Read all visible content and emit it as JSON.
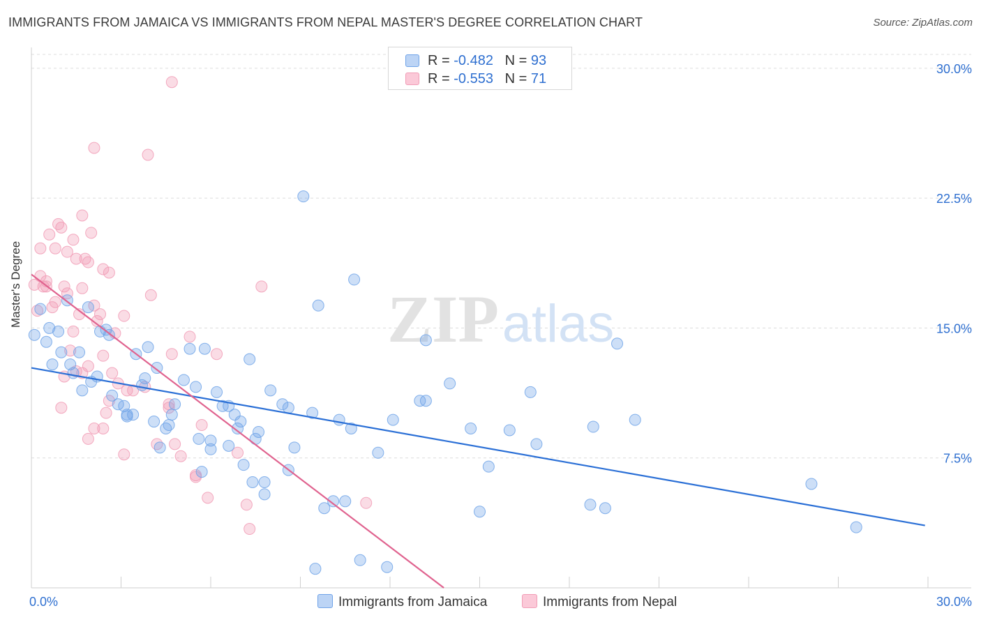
{
  "title": "IMMIGRANTS FROM JAMAICA VS IMMIGRANTS FROM NEPAL MASTER'S DEGREE CORRELATION CHART",
  "source": "Source: ZipAtlas.com",
  "watermark": {
    "zip": "ZIP",
    "atlas": "atlas"
  },
  "colors": {
    "jamaica": "#6fa3e8",
    "nepal": "#f19bb5",
    "jamaica_line": "#2a6fd6",
    "nepal_line": "#e0638f",
    "tick_text": "#2e6fd0"
  },
  "legend": {
    "items": [
      {
        "r_label": "R = ",
        "r_value": "-0.482",
        "n_label": "N = ",
        "n_value": "93"
      },
      {
        "r_label": "R = ",
        "r_value": "-0.553",
        "n_label": "N = ",
        "n_value": "71"
      }
    ]
  },
  "chart_data": {
    "type": "scatter",
    "title": "IMMIGRANTS FROM JAMAICA VS IMMIGRANTS FROM NEPAL MASTER'S DEGREE CORRELATION CHART",
    "xlabel": "",
    "ylabel": "Master's Degree",
    "xlim": [
      0,
      30
    ],
    "ylim": [
      0,
      30.8
    ],
    "x_tick_labels": [
      "0.0%",
      "30.0%"
    ],
    "y_ticks": [
      7.5,
      15.0,
      22.5,
      30.0
    ],
    "y_tick_labels": [
      "7.5%",
      "15.0%",
      "22.5%",
      "30.0%"
    ],
    "grid": true,
    "legend_position": "bottom",
    "series": [
      {
        "name": "Immigrants from Jamaica",
        "r": -0.482,
        "n": 93,
        "trend": {
          "x0": 0.0,
          "y0": 12.7,
          "x1": 29.9,
          "y1": 3.6
        },
        "points": [
          [
            0.1,
            14.6
          ],
          [
            0.3,
            16.1
          ],
          [
            0.5,
            14.2
          ],
          [
            0.6,
            15.0
          ],
          [
            0.7,
            12.9
          ],
          [
            0.9,
            14.8
          ],
          [
            1.0,
            13.6
          ],
          [
            1.2,
            16.6
          ],
          [
            1.3,
            12.9
          ],
          [
            1.4,
            12.4
          ],
          [
            1.6,
            13.6
          ],
          [
            1.7,
            11.4
          ],
          [
            1.9,
            16.2
          ],
          [
            2.0,
            11.9
          ],
          [
            2.2,
            12.2
          ],
          [
            2.3,
            14.8
          ],
          [
            2.5,
            14.9
          ],
          [
            2.6,
            14.6
          ],
          [
            2.7,
            11.1
          ],
          [
            2.9,
            10.6
          ],
          [
            3.1,
            10.5
          ],
          [
            3.2,
            10.0
          ],
          [
            3.4,
            10.0
          ],
          [
            3.5,
            13.5
          ],
          [
            3.7,
            11.7
          ],
          [
            3.8,
            12.1
          ],
          [
            3.9,
            13.9
          ],
          [
            4.1,
            9.6
          ],
          [
            4.2,
            12.7
          ],
          [
            4.3,
            8.1
          ],
          [
            4.5,
            9.2
          ],
          [
            4.6,
            9.4
          ],
          [
            4.7,
            10.0
          ],
          [
            4.8,
            10.6
          ],
          [
            5.1,
            12.0
          ],
          [
            5.3,
            13.8
          ],
          [
            5.5,
            11.6
          ],
          [
            5.7,
            6.7
          ],
          [
            5.8,
            13.8
          ],
          [
            6.0,
            8.5
          ],
          [
            6.0,
            8.0
          ],
          [
            6.2,
            11.3
          ],
          [
            6.4,
            10.5
          ],
          [
            6.6,
            8.2
          ],
          [
            6.8,
            10.0
          ],
          [
            6.9,
            9.2
          ],
          [
            7.0,
            9.6
          ],
          [
            7.1,
            7.1
          ],
          [
            7.3,
            13.2
          ],
          [
            7.4,
            6.1
          ],
          [
            7.5,
            8.6
          ],
          [
            7.6,
            9.0
          ],
          [
            7.8,
            5.4
          ],
          [
            7.8,
            6.1
          ],
          [
            8.0,
            11.4
          ],
          [
            8.4,
            10.6
          ],
          [
            8.6,
            10.4
          ],
          [
            8.8,
            8.1
          ],
          [
            8.6,
            6.8
          ],
          [
            9.4,
            10.1
          ],
          [
            9.6,
            16.3
          ],
          [
            9.5,
            1.1
          ],
          [
            9.8,
            4.6
          ],
          [
            10.1,
            5.0
          ],
          [
            10.3,
            9.7
          ],
          [
            10.5,
            5.0
          ],
          [
            10.7,
            9.2
          ],
          [
            10.8,
            17.8
          ],
          [
            11.0,
            1.6
          ],
          [
            11.6,
            7.8
          ],
          [
            11.9,
            1.2
          ],
          [
            12.1,
            9.7
          ],
          [
            13.0,
            10.8
          ],
          [
            13.2,
            10.8
          ],
          [
            13.2,
            14.3
          ],
          [
            14.0,
            11.8
          ],
          [
            14.7,
            9.2
          ],
          [
            15.0,
            4.4
          ],
          [
            15.3,
            7.0
          ],
          [
            16.0,
            9.1
          ],
          [
            16.7,
            11.3
          ],
          [
            16.9,
            8.3
          ],
          [
            18.7,
            4.8
          ],
          [
            18.8,
            9.3
          ],
          [
            19.2,
            4.6
          ],
          [
            19.6,
            14.1
          ],
          [
            20.2,
            9.7
          ],
          [
            9.1,
            22.6
          ],
          [
            26.1,
            6.0
          ],
          [
            27.6,
            3.5
          ],
          [
            3.2,
            9.9
          ],
          [
            5.6,
            8.6
          ],
          [
            6.6,
            10.5
          ]
        ]
      },
      {
        "name": "Immigrants from Nepal",
        "r": -0.553,
        "n": 71,
        "trend": {
          "x0": 0.0,
          "y0": 18.1,
          "x1": 13.8,
          "y1": 0.0
        },
        "points": [
          [
            0.1,
            17.5
          ],
          [
            0.2,
            16.0
          ],
          [
            0.3,
            18.0
          ],
          [
            0.3,
            19.6
          ],
          [
            0.4,
            17.4
          ],
          [
            0.5,
            17.7
          ],
          [
            0.5,
            17.4
          ],
          [
            0.6,
            20.4
          ],
          [
            0.7,
            16.2
          ],
          [
            0.8,
            16.5
          ],
          [
            0.8,
            19.6
          ],
          [
            0.9,
            21.0
          ],
          [
            1.0,
            20.8
          ],
          [
            1.0,
            10.4
          ],
          [
            1.1,
            17.4
          ],
          [
            1.1,
            12.2
          ],
          [
            1.2,
            17.0
          ],
          [
            1.2,
            19.4
          ],
          [
            1.3,
            13.7
          ],
          [
            1.4,
            20.1
          ],
          [
            1.4,
            14.8
          ],
          [
            1.5,
            19.0
          ],
          [
            1.5,
            12.5
          ],
          [
            1.6,
            15.8
          ],
          [
            1.7,
            17.3
          ],
          [
            1.7,
            12.4
          ],
          [
            1.7,
            21.5
          ],
          [
            1.8,
            19.0
          ],
          [
            1.9,
            18.8
          ],
          [
            1.9,
            12.8
          ],
          [
            1.9,
            8.6
          ],
          [
            2.0,
            20.5
          ],
          [
            2.1,
            16.3
          ],
          [
            2.1,
            9.2
          ],
          [
            2.2,
            15.4
          ],
          [
            2.3,
            15.8
          ],
          [
            2.4,
            9.2
          ],
          [
            2.4,
            18.4
          ],
          [
            2.4,
            13.4
          ],
          [
            2.5,
            10.1
          ],
          [
            2.6,
            18.2
          ],
          [
            2.6,
            10.8
          ],
          [
            2.7,
            12.4
          ],
          [
            2.8,
            14.7
          ],
          [
            2.9,
            11.8
          ],
          [
            3.1,
            7.7
          ],
          [
            3.1,
            15.7
          ],
          [
            3.2,
            11.4
          ],
          [
            3.4,
            11.4
          ],
          [
            3.8,
            11.6
          ],
          [
            3.9,
            25.0
          ],
          [
            4.0,
            16.9
          ],
          [
            4.2,
            8.3
          ],
          [
            4.6,
            10.6
          ],
          [
            4.6,
            10.4
          ],
          [
            4.7,
            13.5
          ],
          [
            4.7,
            29.2
          ],
          [
            4.8,
            8.3
          ],
          [
            5.0,
            7.6
          ],
          [
            5.3,
            14.5
          ],
          [
            5.5,
            6.5
          ],
          [
            5.7,
            9.4
          ],
          [
            5.9,
            5.2
          ],
          [
            6.2,
            13.5
          ],
          [
            6.9,
            7.8
          ],
          [
            7.2,
            4.8
          ],
          [
            7.3,
            3.4
          ],
          [
            7.7,
            17.4
          ],
          [
            11.2,
            4.9
          ],
          [
            2.1,
            25.4
          ],
          [
            5.5,
            6.4
          ]
        ]
      }
    ]
  }
}
